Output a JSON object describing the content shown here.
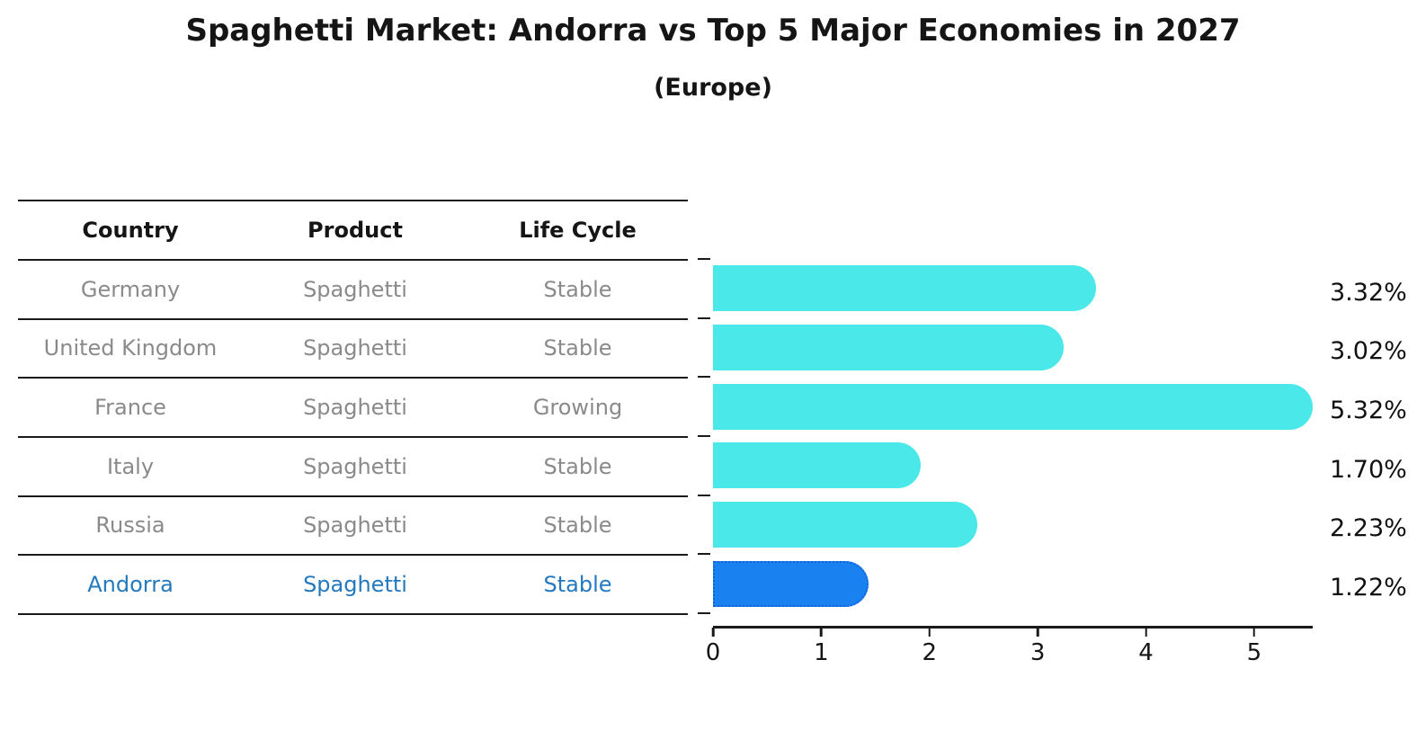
{
  "title": "Spaghetti Market: Andorra vs Top 5 Major Economies in 2027",
  "subtitle": "(Europe)",
  "table": {
    "headers": [
      "Country",
      "Product",
      "Life Cycle"
    ],
    "rows": [
      {
        "country": "Germany",
        "product": "Spaghetti",
        "life_cycle": "Stable",
        "highlight": false
      },
      {
        "country": "United Kingdom",
        "product": "Spaghetti",
        "life_cycle": "Stable",
        "highlight": false
      },
      {
        "country": "France",
        "product": "Spaghetti",
        "life_cycle": "Growing",
        "highlight": false
      },
      {
        "country": "Italy",
        "product": "Spaghetti",
        "life_cycle": "Stable",
        "highlight": false
      },
      {
        "country": "Russia",
        "product": "Spaghetti",
        "life_cycle": "Stable",
        "highlight": false
      },
      {
        "country": "Andorra",
        "product": "Spaghetti",
        "life_cycle": "Stable",
        "highlight": true
      }
    ]
  },
  "chart_data": {
    "type": "bar",
    "orientation": "horizontal",
    "title": "Spaghetti Market: Andorra vs Top 5 Major Economies in 2027",
    "subtitle": "(Europe)",
    "categories": [
      "Germany",
      "United Kingdom",
      "France",
      "Italy",
      "Russia",
      "Andorra"
    ],
    "values": [
      3.32,
      3.02,
      5.32,
      1.7,
      2.23,
      1.22
    ],
    "value_labels": [
      "3.32%",
      "3.02%",
      "5.32%",
      "1.70%",
      "2.23%",
      "1.22%"
    ],
    "highlight_category": "Andorra",
    "xlabel": "",
    "ylabel": "",
    "xlim": [
      0,
      5.54
    ],
    "xticks": [
      0,
      1,
      2,
      3,
      4,
      5
    ],
    "grid": false,
    "legend": "none"
  },
  "colors": {
    "background": "#FFFFFF",
    "bar": "#4AE8E8",
    "highlight_bar": "#1A82F0",
    "highlight_border": "#1464D8",
    "table_text": "#8A8A8A",
    "highlight_text": "#2479BE",
    "line": "#1A1A1A"
  }
}
